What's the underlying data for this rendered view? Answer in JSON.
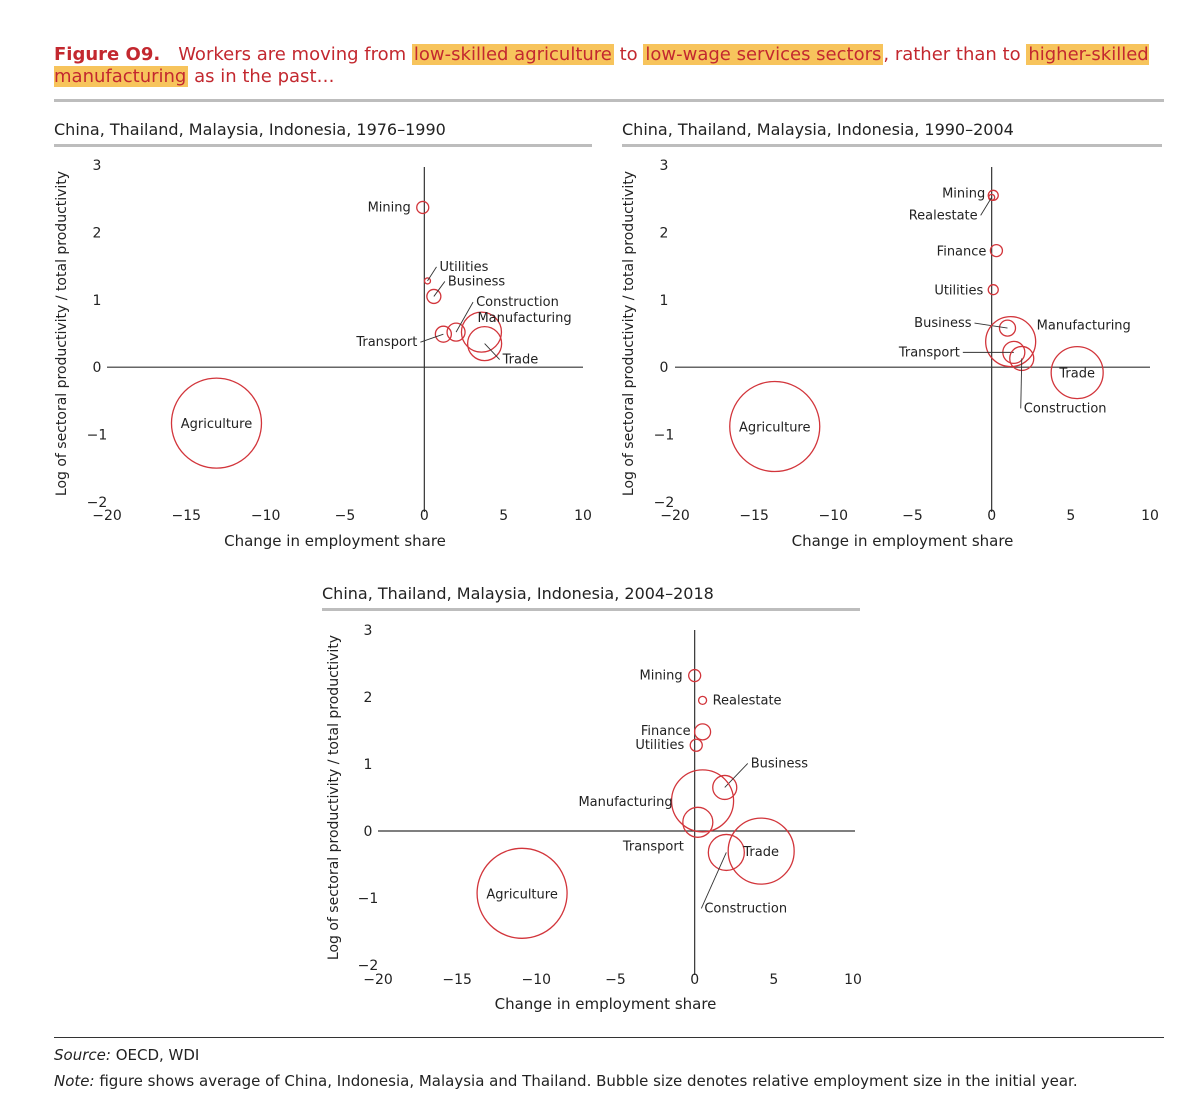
{
  "header": {
    "label": "Figure O9.",
    "title_parts": [
      {
        "text": "Workers are moving from ",
        "highlight": false
      },
      {
        "text": "low-skilled agriculture",
        "highlight": true
      },
      {
        "text": " to ",
        "highlight": false
      },
      {
        "text": "low-wage services sectors",
        "highlight": true
      },
      {
        "text": ", rather than to ",
        "highlight": false
      },
      {
        "text": "higher-skilled manufacturing",
        "highlight": true
      },
      {
        "text": " as in the past…",
        "highlight": false
      }
    ]
  },
  "colors": {
    "bubble": "#d2353b",
    "axis": "#333333",
    "title": "#c3282f",
    "highlight": "#f7c45c"
  },
  "chart_data": [
    {
      "type": "scatter",
      "title": "China, Thailand, Malaysia, Indonesia, 1976–1990",
      "xlabel": "Change in employment share",
      "ylabel": "Log of sectoral productivity / total productivity",
      "xlim": [
        -20,
        10
      ],
      "ylim": [
        -2,
        3
      ],
      "xticks": [
        "−20",
        "−15",
        "−10",
        "−5",
        "0",
        "5",
        "10"
      ],
      "yticks": [
        "−2",
        "−1",
        "0",
        "1",
        "2",
        "3"
      ],
      "points": [
        {
          "label": "Agriculture",
          "x": -13.1,
          "y": -0.83,
          "size": 45
        },
        {
          "label": "Mining",
          "x": -0.1,
          "y": 2.37,
          "size": 6
        },
        {
          "label": "Utilities",
          "x": 0.2,
          "y": 1.28,
          "size": 3
        },
        {
          "label": "Business",
          "x": 0.6,
          "y": 1.05,
          "size": 7
        },
        {
          "label": "Construction",
          "x": 2.0,
          "y": 0.52,
          "size": 9
        },
        {
          "label": "Transport",
          "x": 1.2,
          "y": 0.49,
          "size": 8
        },
        {
          "label": "Manufacturing",
          "x": 3.6,
          "y": 0.52,
          "size": 20
        },
        {
          "label": "Trade",
          "x": 3.8,
          "y": 0.35,
          "size": 17
        }
      ]
    },
    {
      "type": "scatter",
      "title": "China, Thailand, Malaysia, Indonesia, 1990–2004",
      "xlabel": "Change in employment share",
      "ylabel": "Log of sectoral productivity / total productivity",
      "xlim": [
        -20,
        10
      ],
      "ylim": [
        -2,
        3
      ],
      "xticks": [
        "−20",
        "−15",
        "−10",
        "−5",
        "0",
        "5",
        "10"
      ],
      "yticks": [
        "−2",
        "−1",
        "0",
        "1",
        "2",
        "3"
      ],
      "points": [
        {
          "label": "Agriculture",
          "x": -13.7,
          "y": -0.88,
          "size": 45
        },
        {
          "label": "Mining",
          "x": 0.1,
          "y": 2.55,
          "size": 5
        },
        {
          "label": "Realestate",
          "x": 0.0,
          "y": 2.52,
          "size": 3
        },
        {
          "label": "Finance",
          "x": 0.3,
          "y": 1.73,
          "size": 6
        },
        {
          "label": "Utilities",
          "x": 0.1,
          "y": 1.15,
          "size": 5
        },
        {
          "label": "Business",
          "x": 1.0,
          "y": 0.58,
          "size": 8
        },
        {
          "label": "Manufacturing",
          "x": 1.2,
          "y": 0.38,
          "size": 25
        },
        {
          "label": "Transport",
          "x": 1.4,
          "y": 0.22,
          "size": 11
        },
        {
          "label": "Construction",
          "x": 1.9,
          "y": 0.13,
          "size": 12
        },
        {
          "label": "Trade",
          "x": 5.4,
          "y": -0.08,
          "size": 26
        }
      ]
    },
    {
      "type": "scatter",
      "title": "China, Thailand, Malaysia, Indonesia, 2004–2018",
      "xlabel": "Change in employment share",
      "ylabel": "Log of sectoral productivity / total productivity",
      "xlim": [
        -20,
        10
      ],
      "ylim": [
        -2,
        3
      ],
      "xticks": [
        "−20",
        "−15",
        "−10",
        "−5",
        "0",
        "5",
        "10"
      ],
      "yticks": [
        "−2",
        "−1",
        "0",
        "1",
        "2",
        "3"
      ],
      "points": [
        {
          "label": "Agriculture",
          "x": -10.9,
          "y": -0.93,
          "size": 45
        },
        {
          "label": "Mining",
          "x": 0.0,
          "y": 2.32,
          "size": 6
        },
        {
          "label": "Realestate",
          "x": 0.5,
          "y": 1.95,
          "size": 4
        },
        {
          "label": "Finance",
          "x": 0.5,
          "y": 1.48,
          "size": 8
        },
        {
          "label": "Utilities",
          "x": 0.1,
          "y": 1.28,
          "size": 6
        },
        {
          "label": "Business",
          "x": 1.9,
          "y": 0.65,
          "size": 12
        },
        {
          "label": "Manufacturing",
          "x": 0.5,
          "y": 0.45,
          "size": 31
        },
        {
          "label": "Transport",
          "x": 0.2,
          "y": 0.13,
          "size": 15
        },
        {
          "label": "Construction",
          "x": 2.0,
          "y": -0.32,
          "size": 18
        },
        {
          "label": "Trade",
          "x": 4.2,
          "y": -0.3,
          "size": 33
        }
      ]
    }
  ],
  "footer": {
    "source_label": "Source:",
    "source_text": "OECD, WDI",
    "note_label": "Note:",
    "note_text": "figure shows average of China, Indonesia, Malaysia and Thailand. Bubble size denotes relative employment size in the initial year."
  }
}
